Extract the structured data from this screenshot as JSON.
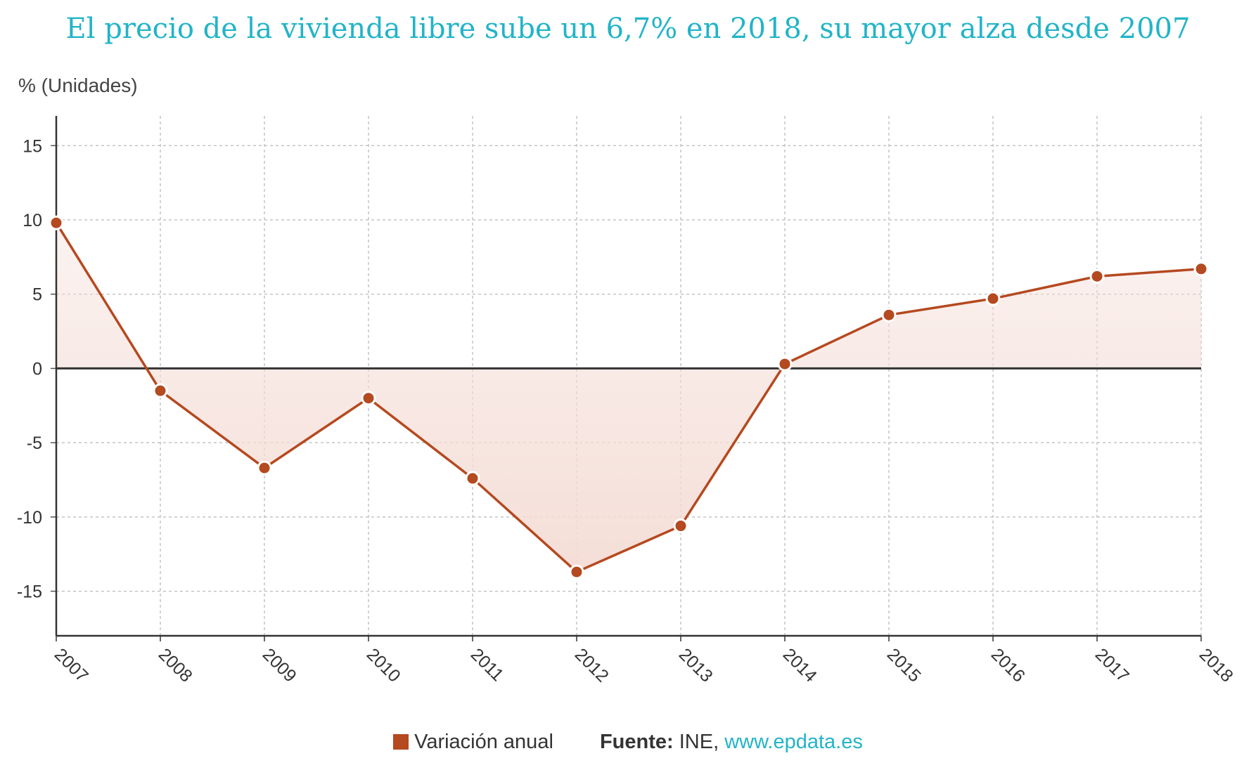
{
  "title": "El precio de la vivienda libre sube un 6,7% en 2018, su mayor alza desde 2007",
  "colors": {
    "line": "#b5491f",
    "fill": "#f4dcd5",
    "accent": "#22b4c8"
  },
  "legend": {
    "series_label": "Variación anual"
  },
  "source": {
    "label": "Fuente:",
    "name": "INE,",
    "site": "www.epdata.es"
  },
  "chart_data": {
    "type": "area",
    "ylabel": "% (Unidades)",
    "ylim": [
      -18,
      17
    ],
    "yticks": [
      15,
      10,
      5,
      0,
      -5,
      -10,
      -15
    ],
    "categories": [
      "2007",
      "2008",
      "2009",
      "2010",
      "2011",
      "2012",
      "2013",
      "2014",
      "2015",
      "2016",
      "2017",
      "2018"
    ],
    "series": [
      {
        "name": "Variación anual",
        "values": [
          9.8,
          -1.5,
          -6.7,
          -2.0,
          -7.4,
          -13.7,
          -10.6,
          0.3,
          3.6,
          4.7,
          6.2,
          6.7
        ]
      }
    ],
    "grid": true
  }
}
